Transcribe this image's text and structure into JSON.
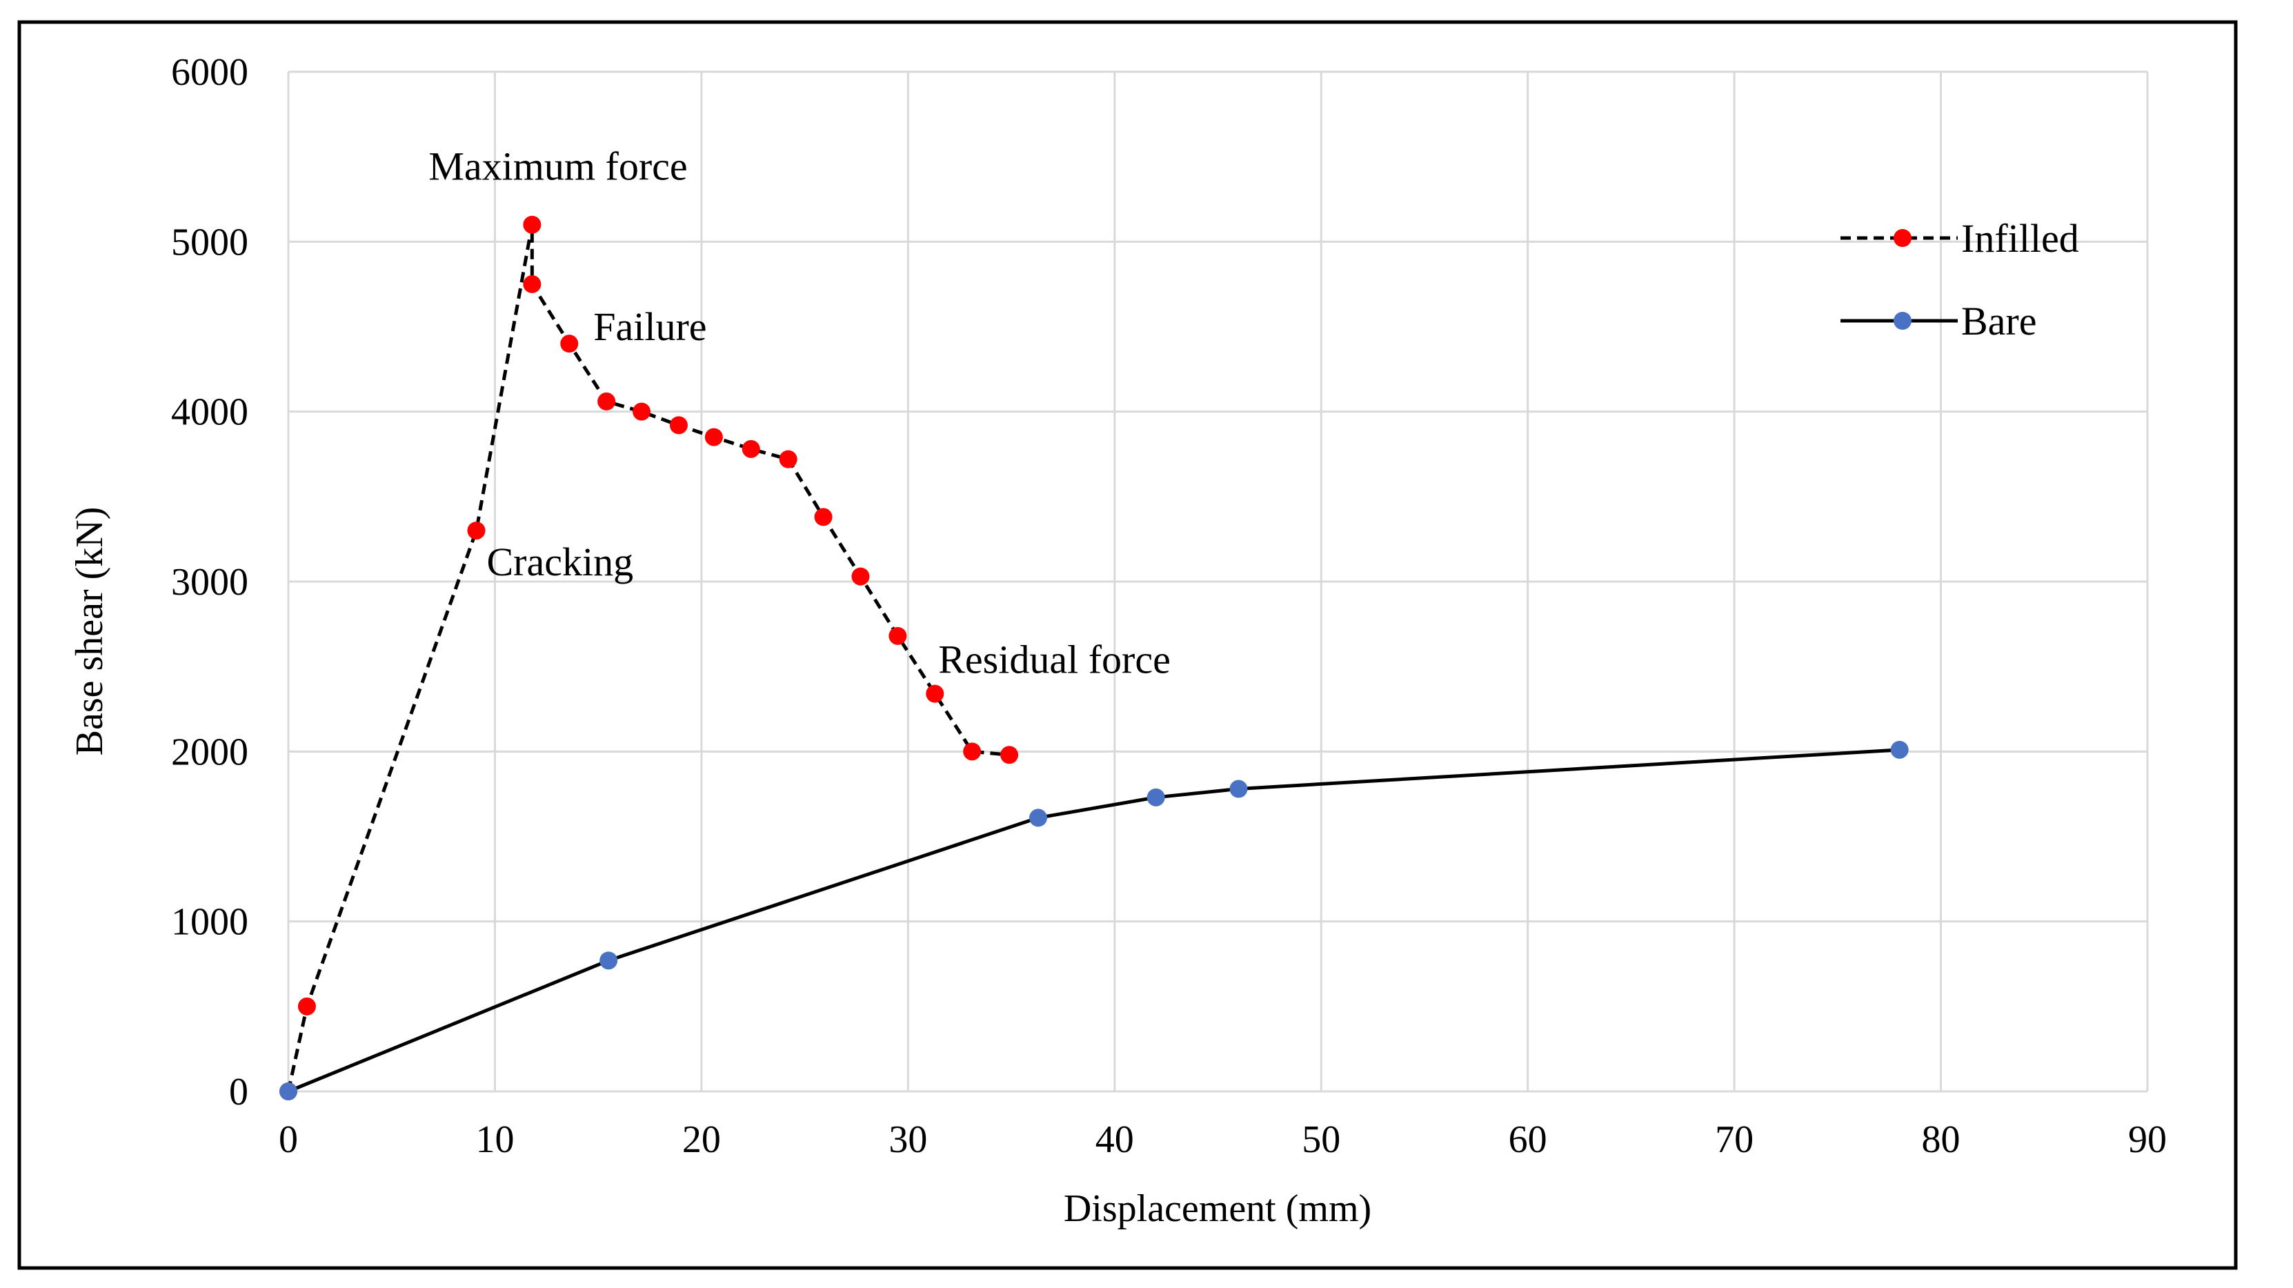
{
  "chart_data": {
    "type": "line",
    "title": "",
    "xlabel": "Displacement  (mm)",
    "ylabel": "Base shear  (kN)",
    "xlim": [
      0,
      90
    ],
    "ylim": [
      0,
      6000
    ],
    "xticks": [
      0,
      10,
      20,
      30,
      40,
      50,
      60,
      70,
      80,
      90
    ],
    "yticks": [
      0,
      1000,
      2000,
      3000,
      4000,
      5000,
      6000
    ],
    "xtick_labels": [
      "0",
      "10",
      "20",
      "30",
      "40",
      "50",
      "60",
      "70",
      "80",
      "90"
    ],
    "ytick_labels": [
      "0",
      "1000",
      "2000",
      "3000",
      "4000",
      "5000",
      "6000"
    ],
    "grid": true,
    "legend_position": "top-right",
    "series": [
      {
        "name": "Infilled",
        "line_style": "dashed",
        "line_color": "#000000",
        "marker_color": "#ff0000",
        "x": [
          0,
          0.9,
          9.1,
          11.8,
          11.8,
          13.6,
          15.4,
          17.1,
          18.9,
          20.6,
          22.4,
          24.2,
          25.9,
          27.7,
          29.5,
          31.3,
          33.1,
          34.9
        ],
        "y": [
          0,
          500,
          3300,
          5100,
          4750,
          4400,
          4060,
          4000,
          3920,
          3850,
          3780,
          3720,
          3380,
          3030,
          2680,
          2340,
          2000,
          1980
        ]
      },
      {
        "name": "Bare",
        "line_style": "solid",
        "line_color": "#000000",
        "marker_color": "#4a72c4",
        "x": [
          0,
          15.5,
          36.3,
          42,
          46,
          78
        ],
        "y": [
          0,
          770,
          1610,
          1730,
          1780,
          2010
        ]
      }
    ],
    "annotations": [
      {
        "text": "Maximum  force",
        "x": 11.8,
        "y": 5100
      },
      {
        "text": "Failure",
        "x": 13.6,
        "y": 4400
      },
      {
        "text": "Cracking",
        "x": 9.1,
        "y": 3300
      },
      {
        "text": "Residual  force",
        "x": 31.3,
        "y": 2340
      }
    ]
  }
}
